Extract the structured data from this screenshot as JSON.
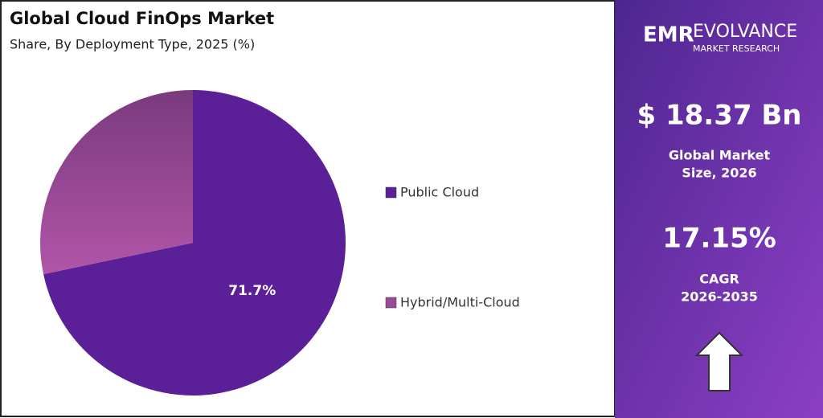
{
  "chart_data": {
    "type": "pie",
    "title": "Global Cloud FinOps Market",
    "subtitle": "Share, By Deployment Type, 2025 (%)",
    "categories": [
      "Public Cloud",
      "Hybrid/Multi-Cloud"
    ],
    "values": [
      71.7,
      28.3
    ],
    "value_labels": [
      "71.7%",
      null
    ],
    "colors": [
      "#5b1f97",
      "#9a4a98"
    ],
    "legend": "right"
  },
  "panel": {
    "logo_mark": "EMR",
    "logo_name": "EVOLVANCE",
    "logo_tagline": "MARKET RESEARCH",
    "market_size": "$ 18.37 Bn",
    "market_size_label": [
      "Global Market",
      "Size, 2026"
    ],
    "cagr": "17.15%",
    "cagr_label": [
      "CAGR",
      "2026-2035"
    ]
  }
}
